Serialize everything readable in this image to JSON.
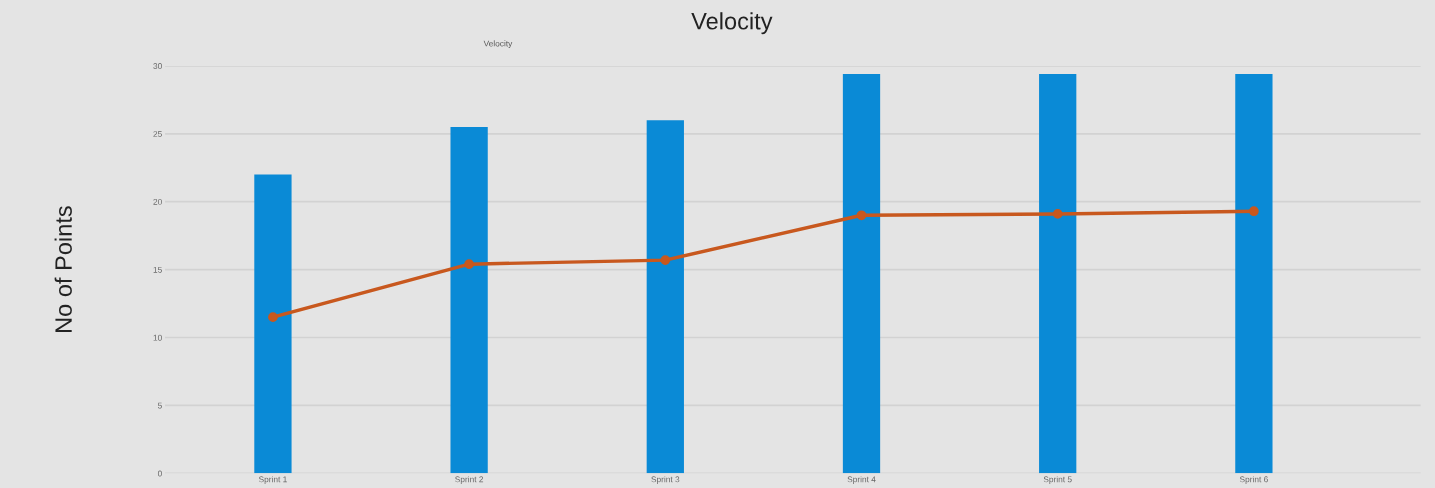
{
  "chart_data": {
    "type": "bar",
    "title": "Velocity",
    "subtitle": "Velocity",
    "ylabel": "No of Points",
    "categories": [
      "Sprint 1",
      "Sprint 2",
      "Sprint 3",
      "Sprint 4",
      "Sprint 5",
      "Sprint 6"
    ],
    "series": [
      {
        "color": "#0a8ad6",
        "values": [
          22,
          25.5,
          26,
          29.4,
          29.4,
          29.4
        ]
      },
      {
        "type": "line",
        "color": "#c8581e",
        "values": [
          11.5,
          15.4,
          15.7,
          19,
          19.1,
          19.3
        ],
        "marker": "circle"
      }
    ],
    "ylim": [
      0,
      30
    ],
    "yticks": [
      0,
      5,
      10,
      15,
      20,
      25,
      30
    ],
    "grid": "y",
    "legend": false
  }
}
